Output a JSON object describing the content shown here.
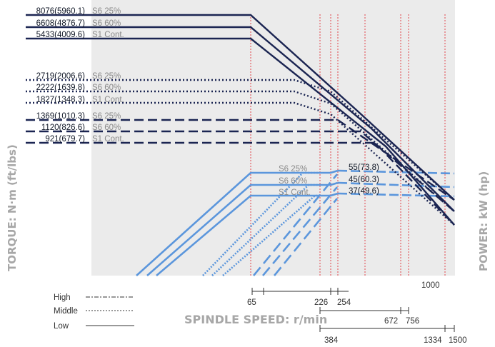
{
  "chart_data": {
    "type": "line",
    "xlabel": "SPINDLE SPEED: r/min",
    "ylabel_left": "TORQUE: N·m (ft/lbs)",
    "ylabel_right": "POWER: kW (hp)",
    "x_tick_label": "1000",
    "torque_labels": [
      {
        "text": "8076(5960.1)",
        "mode": "S6 25%",
        "gear": "High"
      },
      {
        "text": "6608(4876.7)",
        "mode": "S6 60%",
        "gear": "High"
      },
      {
        "text": "5433(4009.6)",
        "mode": "S1 Cont.",
        "gear": "High"
      },
      {
        "text": "2719(2006.6)",
        "mode": "S6 25%",
        "gear": "Middle"
      },
      {
        "text": "2222(1639.8)",
        "mode": "S6 60%",
        "gear": "Middle"
      },
      {
        "text": "1827(1348.3)",
        "mode": "S1 Cont.",
        "gear": "Middle"
      },
      {
        "text": "1369(1010.3)",
        "mode": "S6 25%",
        "gear": "Low"
      },
      {
        "text": "1120(826.6)",
        "mode": "S6 60%",
        "gear": "Low"
      },
      {
        "text": "921(679.7)",
        "mode": "S1 Cont.",
        "gear": "Low"
      }
    ],
    "power_labels": [
      {
        "mode": "S6 25%",
        "text": "55(73.8)"
      },
      {
        "mode": "S6 60%",
        "text": "45(60.3)"
      },
      {
        "mode": "S1 Cont.",
        "text": "37(49.6)"
      }
    ],
    "legend": [
      {
        "name": "High",
        "style": "dash-dot"
      },
      {
        "name": "Middle",
        "style": "dotted"
      },
      {
        "name": "Low",
        "style": "solid"
      }
    ],
    "gear_ranges": [
      {
        "gear": "High",
        "labels": [
          "65",
          "226",
          "254"
        ]
      },
      {
        "gear": "Middle",
        "labels": [
          "672",
          "756"
        ]
      },
      {
        "gear": "Low",
        "labels": [
          "384",
          "1334",
          "1500"
        ]
      }
    ],
    "colors": {
      "torque": "#1b2552",
      "power": "#5b96dc",
      "ref_lines": "#e0474c",
      "plot_bg": "#ebebeb"
    }
  }
}
